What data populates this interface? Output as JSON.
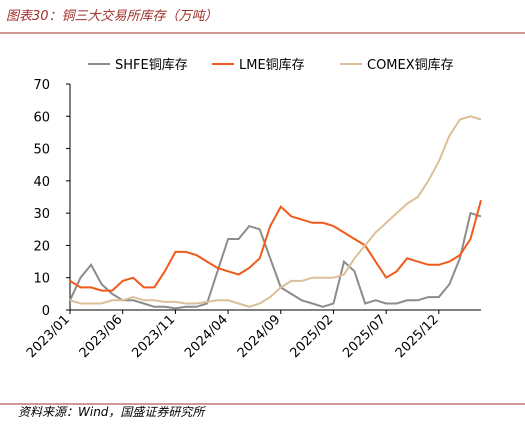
{
  "chart_data": {
    "type": "line",
    "title": "图表30：铜三大交易所库存（万吨）",
    "source": "资料来源：Wind，国盛证券研究所",
    "categories": [
      "2023/01",
      null,
      null,
      null,
      null,
      "2023/06",
      null,
      null,
      null,
      null,
      "2023/11",
      null,
      null,
      null,
      null,
      "2024/04",
      null,
      null,
      null,
      null,
      "2024/09",
      null,
      null,
      null,
      null,
      "2025/02",
      null,
      null,
      null,
      null,
      "2025/07",
      null,
      null,
      null,
      null,
      "2025/12",
      null,
      null,
      null,
      null
    ],
    "ylim": [
      0,
      70
    ],
    "yticks": [
      0,
      10,
      20,
      30,
      40,
      50,
      60,
      70
    ],
    "legend": "top",
    "series": [
      {
        "name": "SHFE铜库存",
        "color": "#8c8c8c",
        "values": [
          3,
          10,
          14,
          8,
          5,
          3,
          3,
          2,
          1,
          1,
          0.5,
          1,
          1,
          2,
          12,
          22,
          22,
          26,
          25,
          16,
          7,
          5,
          3,
          2,
          1,
          2,
          15,
          12,
          2,
          3,
          2,
          2,
          3,
          3,
          4,
          4,
          8,
          16,
          30,
          29
        ]
      },
      {
        "name": "LME铜库存",
        "color": "#f05a1a",
        "values": [
          9,
          7,
          7,
          6,
          6,
          9,
          10,
          7,
          7,
          12,
          18,
          18,
          17,
          15,
          13,
          12,
          11,
          13,
          16,
          26,
          32,
          29,
          28,
          27,
          27,
          26,
          24,
          22,
          20,
          15,
          10,
          12,
          16,
          15,
          14,
          14,
          15,
          17,
          22,
          34
        ]
      },
      {
        "name": "COMEX铜库存",
        "color": "#dcbf98",
        "values": [
          3,
          2,
          2,
          2,
          3,
          3,
          4,
          3,
          3,
          2.5,
          2.5,
          2,
          2,
          2.5,
          3,
          3,
          2,
          1,
          2,
          4,
          7,
          9,
          9,
          10,
          10,
          10,
          11,
          16,
          20,
          24,
          27,
          30,
          33,
          35,
          40,
          46,
          54,
          59,
          60,
          59
        ]
      }
    ]
  }
}
